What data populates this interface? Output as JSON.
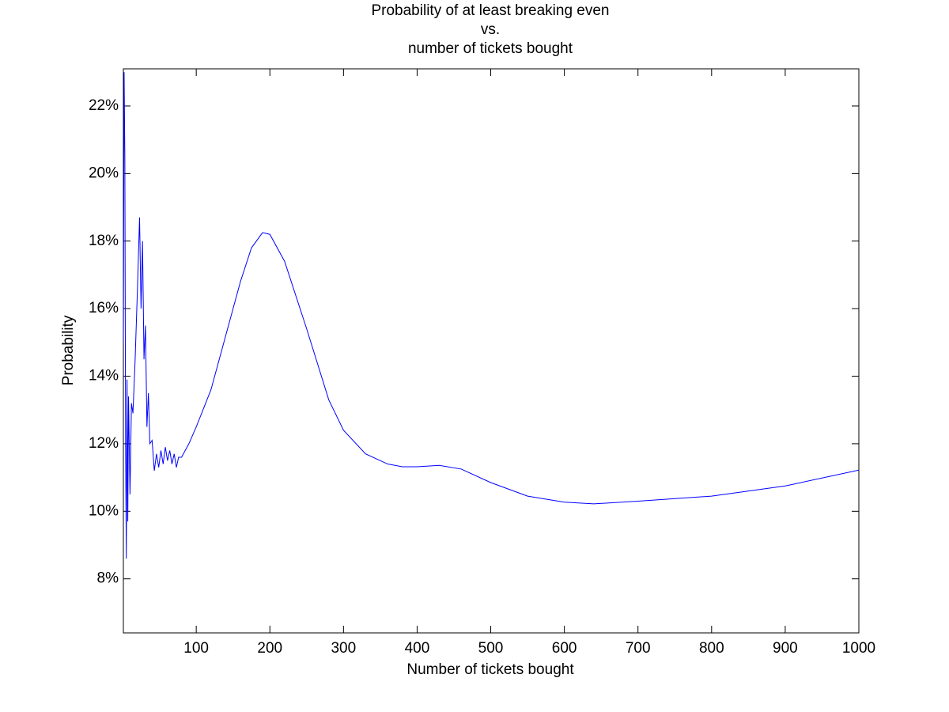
{
  "chart_data": {
    "type": "line",
    "title": [
      "Probability of at least breaking even",
      "vs.",
      "number of tickets bought"
    ],
    "x_label": "Number of tickets bought",
    "y_label": "Probability",
    "x": [
      1,
      2,
      3,
      4,
      5,
      6,
      7,
      8,
      10,
      12,
      14,
      17,
      20,
      23,
      25,
      27,
      29,
      31,
      33,
      35,
      37,
      40,
      43,
      46,
      49,
      52,
      55,
      58,
      61,
      64,
      67,
      70,
      73,
      76,
      80,
      90,
      100,
      120,
      140,
      160,
      175,
      190,
      200,
      220,
      250,
      280,
      300,
      330,
      360,
      380,
      400,
      430,
      460,
      500,
      550,
      600,
      640,
      700,
      800,
      900,
      1000
    ],
    "series": [
      {
        "color": "#0000ff",
        "values": [
          15.0,
          23.0,
          20.5,
          12.0,
          8.6,
          13.9,
          9.7,
          13.4,
          10.5,
          13.2,
          12.9,
          14.5,
          16.5,
          18.7,
          16.0,
          18.0,
          14.5,
          15.5,
          12.5,
          13.5,
          12.0,
          12.1,
          11.2,
          11.7,
          11.3,
          11.8,
          11.4,
          11.9,
          11.5,
          11.8,
          11.4,
          11.7,
          11.3,
          11.6,
          11.6,
          12.0,
          12.5,
          13.6,
          15.2,
          16.8,
          17.8,
          18.25,
          18.2,
          17.4,
          15.4,
          13.3,
          12.4,
          11.7,
          11.4,
          11.32,
          11.32,
          11.36,
          11.25,
          10.85,
          10.45,
          10.27,
          10.22,
          10.3,
          10.45,
          10.75,
          11.22
        ]
      }
    ],
    "xlim": [
      1,
      1000
    ],
    "xticks": [
      100,
      200,
      300,
      400,
      500,
      600,
      700,
      800,
      900,
      1000
    ],
    "ylim": [
      6.4,
      23.1
    ],
    "yticks": [
      {
        "value": 8,
        "label": "8%"
      },
      {
        "value": 10,
        "label": "10%"
      },
      {
        "value": 12,
        "label": "12%"
      },
      {
        "value": 14,
        "label": "14%"
      },
      {
        "value": 16,
        "label": "16%"
      },
      {
        "value": 18,
        "label": "18%"
      },
      {
        "value": 20,
        "label": "20%"
      },
      {
        "value": 22,
        "label": "22%"
      }
    ]
  }
}
